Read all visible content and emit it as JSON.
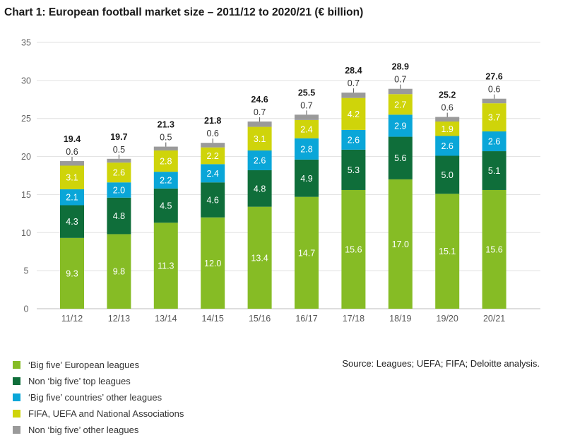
{
  "title": "Chart 1: European football market size – 2011/12 to 2020/21 (€ billion)",
  "source": "Source: Leagues; UEFA; FIFA; Deloitte analysis.",
  "colors": {
    "big_five": "#86bc25",
    "non_big_five_top": "#0f6e3a",
    "big_five_other": "#0aa6d8",
    "fifa_uefa": "#cfd40a",
    "non_big_five_other": "#9a9a9a"
  },
  "chart_data": {
    "type": "bar",
    "stacked": true,
    "title": "Chart 1: European football market size – 2011/12 to 2020/21 (€ billion)",
    "categories": [
      "11/12",
      "12/13",
      "13/14",
      "14/15",
      "15/16",
      "16/17",
      "17/18",
      "18/19",
      "19/20",
      "20/21"
    ],
    "ylim": [
      0,
      35
    ],
    "yticks": [
      0,
      5,
      10,
      15,
      20,
      25,
      30,
      35
    ],
    "grid": true,
    "legend": "bottom-left",
    "totals": [
      "19.4",
      "19.7",
      "21.3",
      "21.8",
      "24.6",
      "25.5",
      "28.4",
      "28.9",
      "25.2",
      "27.6"
    ],
    "series": [
      {
        "name": "‘Big five’ European leagues",
        "color": "#86bc25",
        "label_color": "#ffffff",
        "values": [
          9.3,
          9.8,
          11.3,
          12.0,
          13.4,
          14.7,
          15.6,
          17.0,
          15.1,
          15.6
        ],
        "labels": [
          "9.3",
          "9.8",
          "11.3",
          "12.0",
          "13.4",
          "14.7",
          "15.6",
          "17.0",
          "15.1",
          "15.6"
        ]
      },
      {
        "name": "Non ‘big five’ top leagues",
        "color": "#0f6e3a",
        "label_color": "#ffffff",
        "values": [
          4.3,
          4.8,
          4.5,
          4.6,
          4.8,
          4.9,
          5.3,
          5.6,
          5.0,
          5.1
        ],
        "labels": [
          "4.3",
          "4.8",
          "4.5",
          "4.6",
          "4.8",
          "4.9",
          "5.3",
          "5.6",
          "5.0",
          "5.1"
        ]
      },
      {
        "name": "‘Big five’ countries’ other leagues",
        "color": "#0aa6d8",
        "label_color": "#ffffff",
        "values": [
          2.1,
          2.0,
          2.2,
          2.4,
          2.6,
          2.8,
          2.6,
          2.9,
          2.6,
          2.6
        ],
        "labels": [
          "2.1",
          "2.0",
          "2.2",
          "2.4",
          "2.6",
          "2.8",
          "2.6",
          "2.9",
          "2.6",
          "2.6"
        ]
      },
      {
        "name": "FIFA, UEFA and National Associations",
        "color": "#cfd40a",
        "label_color": "#ffffff",
        "values": [
          3.1,
          2.6,
          2.8,
          2.2,
          3.1,
          2.4,
          4.2,
          2.7,
          1.9,
          3.7
        ],
        "labels": [
          "3.1",
          "2.6",
          "2.8",
          "2.2",
          "3.1",
          "2.4",
          "4.2",
          "2.7",
          "1.9",
          "3.7"
        ]
      },
      {
        "name": "Non ‘big five’ other leagues",
        "color": "#9a9a9a",
        "label_color": "#333333",
        "values": [
          0.6,
          0.5,
          0.5,
          0.6,
          0.7,
          0.7,
          0.7,
          0.7,
          0.6,
          0.6
        ],
        "labels": [
          "0.6",
          "0.5",
          "0.5",
          "0.6",
          "0.7",
          "0.7",
          "0.7",
          "0.7",
          "0.6",
          "0.6"
        ]
      }
    ]
  }
}
